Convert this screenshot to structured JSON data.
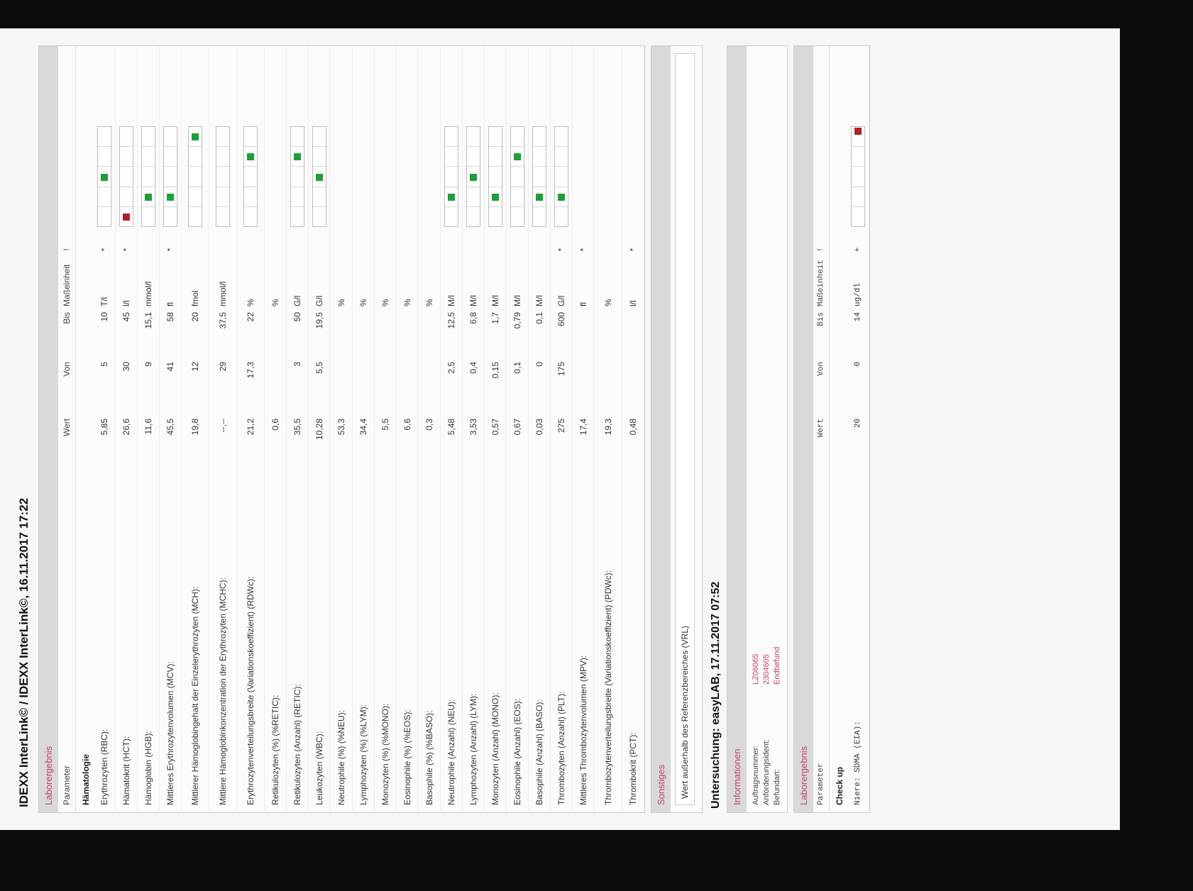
{
  "window_title": "IDEXX InterLink© / IDEXX InterLink©, 16.11.2017 17:22",
  "colors": {
    "accent": "#c2416f",
    "in_range": "#1f9e3a",
    "out_of_range": "#b3202a"
  },
  "results": {
    "section_title": "Laborergebnis",
    "headers": {
      "parameter": "Parameter",
      "wert": "Wert",
      "von": "Von",
      "bis": "Bis",
      "unit": "Maßeinheit",
      "flag": "!"
    },
    "group": "Hämatologie",
    "rows": [
      {
        "param": "Erythrozyten (RBC):",
        "wert": "5,85",
        "von": "5",
        "bis": "10",
        "unit": "T/l",
        "flag": "*",
        "bar_seg": 2,
        "out": false,
        "tall": false
      },
      {
        "param": "Hämatokrit (HCT):",
        "wert": "26,6",
        "von": "30",
        "bis": "45",
        "unit": "l/l",
        "flag": "*",
        "bar_seg": 0,
        "out": true,
        "tall": false
      },
      {
        "param": "Hämoglobin (HGB):",
        "wert": "11,6",
        "von": "9",
        "bis": "15,1",
        "unit": "mmol/l",
        "flag": "",
        "bar_seg": 1,
        "out": false,
        "tall": false
      },
      {
        "param": "Mittleres Erythrozytenvolumen (MCV):",
        "wert": "45,5",
        "von": "41",
        "bis": "58",
        "unit": "fl",
        "flag": "*",
        "bar_seg": 1,
        "out": false,
        "tall": false
      },
      {
        "param": "Mittlerer Hämoglobingehalt der Einzelerythrozyten (MCH):",
        "wert": "19,8",
        "von": "12",
        "bis": "20",
        "unit": "fmol",
        "flag": "",
        "bar_seg": 4,
        "out": false,
        "tall": true
      },
      {
        "param": "Mittlere Hämoglobinkonzentration der Erythrozyten (MCHC):",
        "wert": "--,--",
        "von": "29",
        "bis": "37,5",
        "unit": "mmol/l",
        "flag": "",
        "bar_seg": -1,
        "out": false,
        "tall": true
      },
      {
        "param": "Erythrozytenverteilungsbreite (Variationskoeffizient) (RDWc):",
        "wert": "21,2",
        "von": "17,3",
        "bis": "22",
        "unit": "%",
        "flag": "",
        "bar_seg": 3,
        "out": false,
        "tall": true
      },
      {
        "param": "Retikulozyten (%) (%RETIC):",
        "wert": "0,6",
        "von": "",
        "bis": "",
        "unit": "%",
        "flag": "",
        "bar_seg": -1,
        "out": false,
        "tall": false
      },
      {
        "param": "Retikulozyten (Anzahl) (RETIC):",
        "wert": "35,5",
        "von": "3",
        "bis": "50",
        "unit": "G/l",
        "flag": "",
        "bar_seg": 3,
        "out": false,
        "tall": false
      },
      {
        "param": "Leukozyten (WBC):",
        "wert": "10,28",
        "von": "5,5",
        "bis": "19,5",
        "unit": "G/l",
        "flag": "",
        "bar_seg": 2,
        "out": false,
        "tall": false
      },
      {
        "param": "Neutrophile (%) (%NEU):",
        "wert": "53,3",
        "von": "",
        "bis": "",
        "unit": "%",
        "flag": "",
        "bar_seg": -1,
        "out": false,
        "tall": false
      },
      {
        "param": "Lymphozyten (%) (%LYM):",
        "wert": "34,4",
        "von": "",
        "bis": "",
        "unit": "%",
        "flag": "",
        "bar_seg": -1,
        "out": false,
        "tall": false
      },
      {
        "param": "Monozyten (%) (%MONO):",
        "wert": "5,5",
        "von": "",
        "bis": "",
        "unit": "%",
        "flag": "",
        "bar_seg": -1,
        "out": false,
        "tall": false
      },
      {
        "param": "Eosinophile (%) (%EOS):",
        "wert": "6,6",
        "von": "",
        "bis": "",
        "unit": "%",
        "flag": "",
        "bar_seg": -1,
        "out": false,
        "tall": false
      },
      {
        "param": "Basophile (%) (%BASO):",
        "wert": "0,3",
        "von": "",
        "bis": "",
        "unit": "%",
        "flag": "",
        "bar_seg": -1,
        "out": false,
        "tall": false
      },
      {
        "param": "Neutrophile (Anzahl) (NEU):",
        "wert": "5,48",
        "von": "2,5",
        "bis": "12,5",
        "unit": "M/l",
        "flag": "",
        "bar_seg": 1,
        "out": false,
        "tall": false
      },
      {
        "param": "Lymphozyten (Anzahl) (LYM):",
        "wert": "3,53",
        "von": "0,4",
        "bis": "6,8",
        "unit": "M/l",
        "flag": "",
        "bar_seg": 2,
        "out": false,
        "tall": false
      },
      {
        "param": "Monozyten (Anzahl) (MONO):",
        "wert": "0,57",
        "von": "0,15",
        "bis": "1,7",
        "unit": "M/l",
        "flag": "",
        "bar_seg": 1,
        "out": false,
        "tall": false
      },
      {
        "param": "Eosinophile (Anzahl) (EOS):",
        "wert": "0,67",
        "von": "0,1",
        "bis": "0,79",
        "unit": "M/l",
        "flag": "",
        "bar_seg": 3,
        "out": false,
        "tall": false
      },
      {
        "param": "Basophile (Anzahl) (BASO):",
        "wert": "0,03",
        "von": "0",
        "bis": "0,1",
        "unit": "M/l",
        "flag": "",
        "bar_seg": 1,
        "out": false,
        "tall": false
      },
      {
        "param": "Thrombozyten (Anzahl) (PLT):",
        "wert": "275",
        "von": "175",
        "bis": "600",
        "unit": "G/l",
        "flag": "*",
        "bar_seg": 1,
        "out": false,
        "tall": false
      },
      {
        "param": "Mittleres Thrombozytenvolumen (MPV):",
        "wert": "17,4",
        "von": "",
        "bis": "",
        "unit": "fl",
        "flag": "*",
        "bar_seg": -1,
        "out": false,
        "tall": false
      },
      {
        "param": "Thrombozytenverteilungsbreite (Variationskoeffizient) (PDWc):",
        "wert": "19,3",
        "von": "",
        "bis": "",
        "unit": "%",
        "flag": "",
        "bar_seg": -1,
        "out": false,
        "tall": true
      },
      {
        "param": "Thrombokrit (PCT):",
        "wert": "0,48",
        "von": "",
        "bis": "",
        "unit": "l/l",
        "flag": "*",
        "bar_seg": -1,
        "out": false,
        "tall": false
      }
    ]
  },
  "sonstiges": {
    "title": "Sonstiges",
    "note": "Wert außerhalb des Referenzbereiches (VRL)"
  },
  "exam": {
    "title": "Untersuchung: easyLAB, 17.11.2017 07:52",
    "info_title": "Informationen",
    "info": [
      {
        "k": "Auftragsnummer:",
        "v": "LZ06065"
      },
      {
        "k": "Anforderungsident:",
        "v": "2304605"
      },
      {
        "k": "Befundart:",
        "v": "Endbefund"
      }
    ],
    "results_title": "Laborergebnis",
    "headers": {
      "parameter": "Parameter",
      "wert": "Wert",
      "von": "Von",
      "bis": "Bis",
      "unit": "Maßeinheit",
      "flag": "!"
    },
    "group": "Check up",
    "rows": [
      {
        "param": "Niere: SDMA (EIA):",
        "wert": "20",
        "von": "0",
        "bis": "14",
        "unit": "ug/dl",
        "flag": "+"
      }
    ]
  }
}
